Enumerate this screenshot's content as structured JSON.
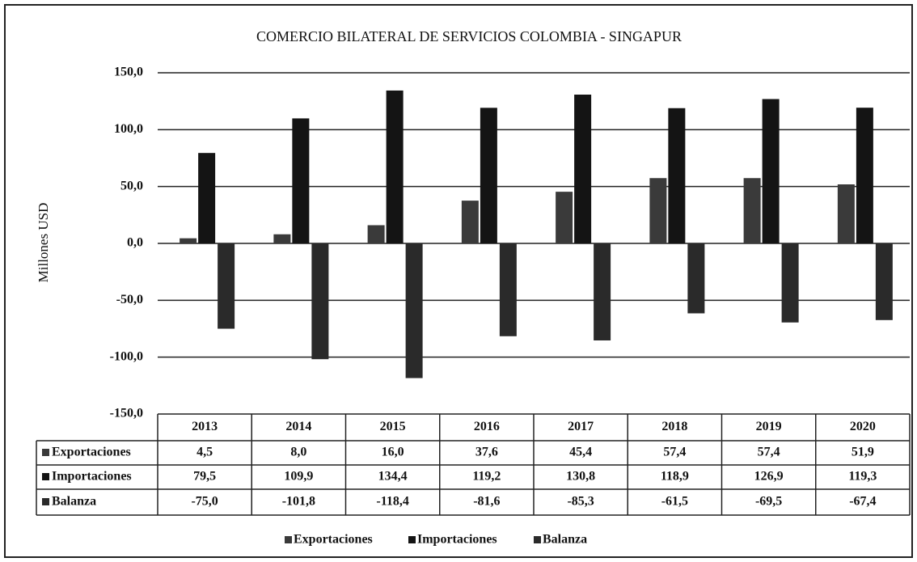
{
  "chart_data": {
    "type": "bar",
    "title": "COMERCIO BILATERAL DE SERVICIOS COLOMBIA - SINGAPUR",
    "y_label": "Millones USD",
    "categories": [
      "2013",
      "2014",
      "2015",
      "2016",
      "2017",
      "2018",
      "2019",
      "2020"
    ],
    "series": [
      {
        "name": "Exportaciones",
        "color": "#3a3a3a",
        "values": [
          4.5,
          8.0,
          16.0,
          37.6,
          45.4,
          57.4,
          57.4,
          51.9
        ],
        "value_labels": [
          "4,5",
          "8,0",
          "16,0",
          "37,6",
          "45,4",
          "57,4",
          "57,4",
          "51,9"
        ]
      },
      {
        "name": "Importaciones",
        "color": "#141414",
        "values": [
          79.5,
          109.9,
          134.4,
          119.2,
          130.8,
          118.9,
          126.9,
          119.3
        ],
        "value_labels": [
          "79,5",
          "109,9",
          "134,4",
          "119,2",
          "130,8",
          "118,9",
          "126,9",
          "119,3"
        ]
      },
      {
        "name": "Balanza",
        "color": "#2a2a2a",
        "values": [
          -75.0,
          -101.8,
          -118.4,
          -81.6,
          -85.3,
          -61.5,
          -69.5,
          -67.4
        ],
        "value_labels": [
          "-75,0",
          "-101,8",
          "-118,4",
          "-81,6",
          "-85,3",
          "-61,5",
          "-69,5",
          "-67,4"
        ]
      }
    ],
    "ylim": [
      -150,
      150
    ],
    "yticks": [
      {
        "value": -150,
        "label": "-150,0"
      },
      {
        "value": -100,
        "label": "-100,0"
      },
      {
        "value": -50,
        "label": "-50,0"
      },
      {
        "value": 0,
        "label": "0,0"
      },
      {
        "value": 50,
        "label": "50,0"
      },
      {
        "value": 100,
        "label": "100,0"
      },
      {
        "value": 150,
        "label": "150,0"
      }
    ],
    "grid": true,
    "legend": "bottom"
  }
}
